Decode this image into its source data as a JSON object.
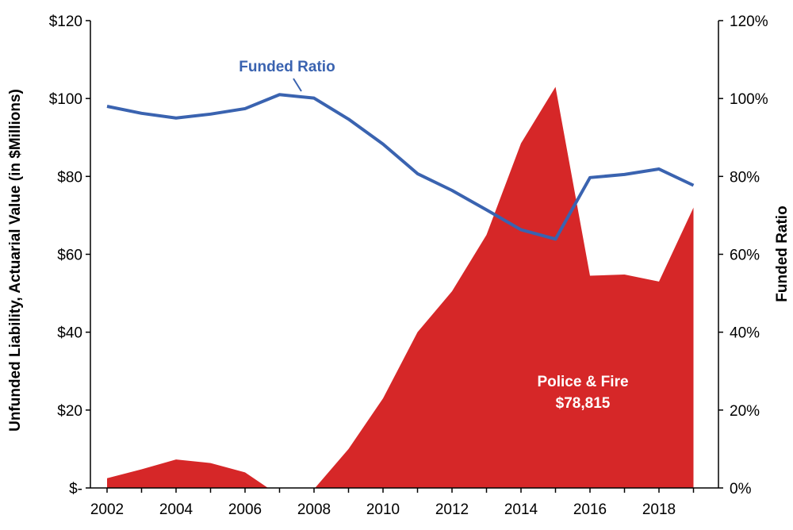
{
  "chart_data": {
    "type": "area",
    "x": [
      2002,
      2003,
      2004,
      2005,
      2006,
      2007,
      2008,
      2009,
      2010,
      2011,
      2012,
      2013,
      2014,
      2015,
      2016,
      2017,
      2018,
      2019
    ],
    "series": [
      {
        "name": "Police & Fire",
        "type": "area",
        "axis": "left",
        "values": [
          2.5,
          4.8,
          7.3,
          6.4,
          4.0,
          -2.0,
          -0.3,
          10.0,
          23.0,
          40.0,
          50.5,
          65.0,
          88.5,
          103.0,
          54.5,
          54.8,
          53.0,
          72.0
        ]
      },
      {
        "name": "Funded Ratio",
        "type": "line",
        "axis": "right",
        "values": [
          98,
          96.2,
          95,
          96,
          97.4,
          101,
          100.1,
          94.7,
          88.3,
          80.7,
          76.4,
          71.4,
          66.3,
          63.9,
          79.7,
          80.5,
          81.9,
          77.7
        ]
      }
    ],
    "xlabel": "",
    "ylabel": "Unfunded Liability, Actuarial Value (in $Millions)",
    "y2label": "Funded Ratio",
    "ylim": [
      0,
      120
    ],
    "y2lim": [
      0,
      120
    ],
    "xticks": [
      "2002",
      "2004",
      "2006",
      "2008",
      "2010",
      "2012",
      "2014",
      "2016",
      "2018"
    ],
    "yticks": [
      "$-",
      "$20",
      "$40",
      "$60",
      "$80",
      "$100",
      "$120"
    ],
    "y2ticks": [
      "0%",
      "20%",
      "40%",
      "60%",
      "80%",
      "100%",
      "120%"
    ],
    "annotations": {
      "line_label": "Funded Ratio",
      "area_label_line1": "Police & Fire",
      "area_label_line2": "$78,815"
    },
    "grid": false,
    "legend": "none",
    "colors": {
      "area": "#D62728",
      "line": "#3A63B0",
      "axis": "#000000"
    }
  }
}
